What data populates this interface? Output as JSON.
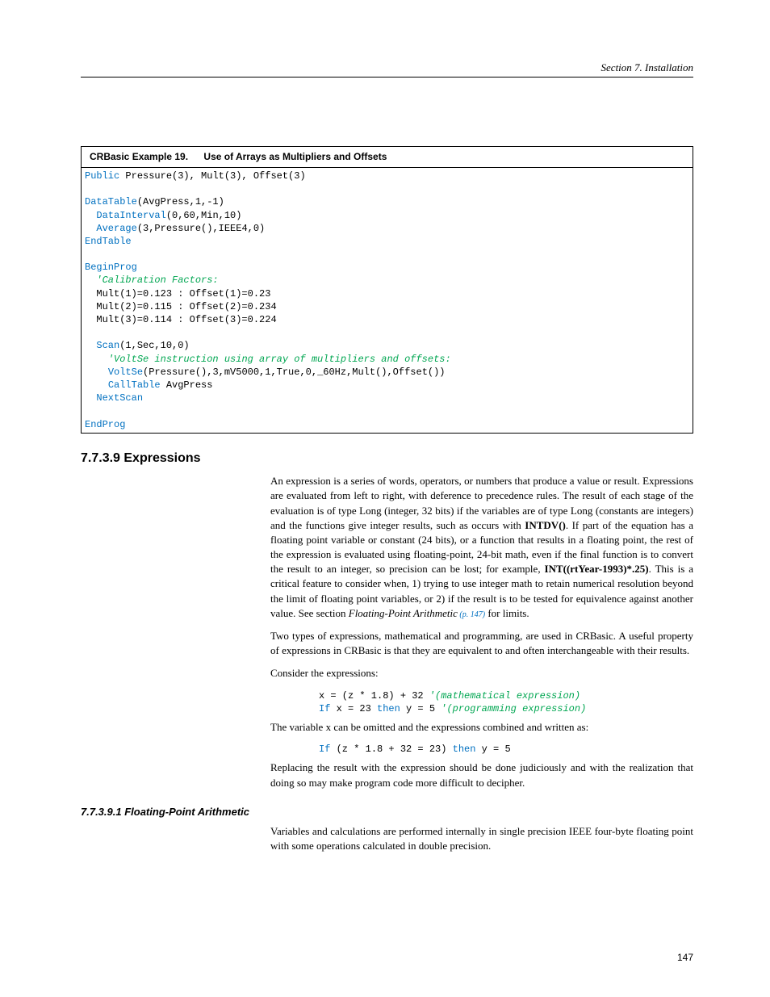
{
  "header": {
    "section_text": "Section 7.  Installation"
  },
  "code_example": {
    "label": "CRBasic Example 19.",
    "title": "Use of Arrays as Multipliers and Offsets"
  },
  "code_lines": {
    "l1a": "Public",
    "l1b": " Pressure(3), Mult(3), Offset(3)",
    "l2a": "DataTable",
    "l2b": "(AvgPress,1,-1)",
    "l3a": "DataInterval",
    "l3b": "(0,60,Min,10)",
    "l4a": "Average",
    "l4b": "(3,Pressure(),IEEE4,0)",
    "l5a": "EndTable",
    "l6a": "BeginProg",
    "l7a": "'Calibration Factors:",
    "l8": "  Mult(1)=0.123 : Offset(1)=0.23",
    "l9": "  Mult(2)=0.115 : Offset(2)=0.234",
    "l10": "  Mult(3)=0.114 : Offset(3)=0.224",
    "l11a": "Scan",
    "l11b": "(1,Sec,10,0)",
    "l12a": "'VoltSe instruction using array of multipliers and offsets:",
    "l13a": "VoltSe",
    "l13b": "(Pressure(),3,mV5000,1,True,0,_60Hz,Mult(),Offset())",
    "l14a": "CallTable",
    "l14b": " AvgPress",
    "l15a": "NextScan",
    "l16a": "EndProg"
  },
  "section": {
    "heading": "7.7.3.9 Expressions",
    "para1_a": "An expression is a series of words, operators, or numbers that produce a value or result. Expressions are evaluated from left to right, with deference to precedence rules. The result of each stage of the evaluation is of type Long (integer, 32 bits) if the variables are of type Long (constants are integers) and the functions give integer results, such as occurs with ",
    "para1_intdv": "INTDV()",
    "para1_b": ".  If part of the equation has a floating point variable or constant (24 bits), or a function that results in a floating point, the rest of the expression is evaluated using floating-point, 24-bit math, even if the final function is to convert the result to an integer, so precision can be lost; for example, ",
    "para1_int": "INT((rtYear-1993)*.25)",
    "para1_c": ". This is a critical feature to consider when, 1) trying to use integer math to retain numerical resolution beyond the limit of floating point variables, or 2) if the result is to be tested for equivalence against another value.  See section ",
    "para1_ref": "Floating-Point Arithmetic",
    "para1_refpg": " (p. 147)",
    "para1_d": " for limits.",
    "para2": "Two types of expressions, mathematical and programming, are used in CRBasic.  A useful property of expressions in CRBasic is that they are equivalent to and often interchangeable with their results.",
    "para3": "Consider the expressions:",
    "expr1_code": "x = (z * 1.8) + 32",
    "expr1_cmt": " '(mathematical expression)",
    "expr2_if": "If",
    "expr2_mid": " x = 23 ",
    "expr2_then": "then",
    "expr2_end": " y = 5",
    "expr2_cmt": " '(programming expression)",
    "para4": "The variable x can be omitted and the expressions combined and written as:",
    "expr3_if": "If",
    "expr3_mid": " (z * 1.8 + 32 = 23) ",
    "expr3_then": "then",
    "expr3_end": " y = 5",
    "para5": "Replacing the result with the expression should be done judiciously and with the realization that doing so may make program code more difficult to decipher.",
    "sub_heading": "7.7.3.9.1 Floating-Point Arithmetic",
    "para6": "Variables and calculations are performed internally in single precision IEEE four-byte floating point with some operations calculated in double precision."
  },
  "footer": {
    "page_number": "147"
  }
}
